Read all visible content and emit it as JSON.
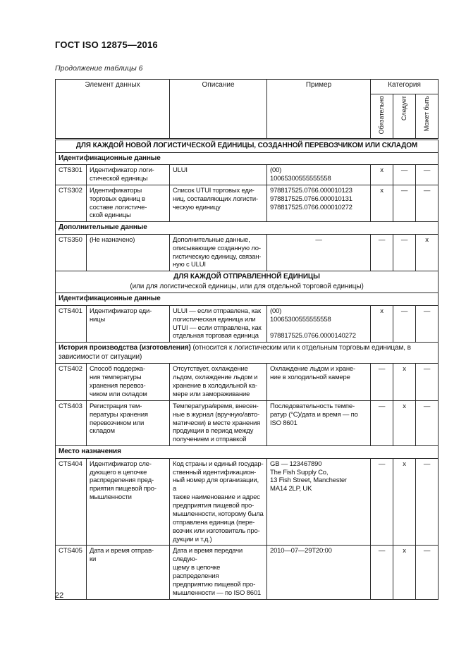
{
  "page": {
    "doc_title": "ГОСТ ISO 12875—2016",
    "table_caption": "Продолжение таблицы 6",
    "page_number": "22"
  },
  "table": {
    "headers": {
      "element": "Элемент данных",
      "description": "Описание",
      "example": "Пример",
      "category": "Категория",
      "category_cols": [
        "Обязательно",
        "Следует",
        "Может быть"
      ]
    },
    "rows": [
      {
        "type": "section",
        "title": "ДЛЯ КАЖДОЙ НОВОЙ ЛОГИСТИЧЕСКОЙ ЕДИНИЦЫ, СОЗДАННОЙ ПЕРЕВОЗЧИКОМ ИЛИ СКЛАДОМ",
        "subtitle": ""
      },
      {
        "type": "subsection",
        "title": "Идентификационные данные",
        "note": ""
      },
      {
        "type": "data",
        "code": "CTS301",
        "name": "Идентификатор логи-\nстической единицы",
        "desc": "ULUI",
        "example": "(00)\n10065300555555558",
        "example_align": "left",
        "cat": [
          "x",
          "—",
          "—"
        ]
      },
      {
        "type": "data",
        "code": "CTS302",
        "name": "Идентификаторы\nторговых единиц в\nсоставе логистиче-\nской единицы",
        "desc": "Список UTUI торговых еди-\nниц, составляющих логисти-\nческую единицу",
        "example": "978817525.0766.000010123\n978817525.0766.000010131\n978817525.0766.000010272",
        "example_align": "left",
        "cat": [
          "x",
          "—",
          "—"
        ]
      },
      {
        "type": "subsection",
        "title": "Дополнительные данные",
        "note": ""
      },
      {
        "type": "data",
        "code": "CTS350",
        "name": "(Не назначено)",
        "desc": "Дополнительные данные,\nописывающие созданную ло-\nгистическую единицу, связан-\nную с ULUI",
        "example": "—",
        "example_align": "center",
        "cat": [
          "—",
          "—",
          "x"
        ]
      },
      {
        "type": "section",
        "title": "ДЛЯ КАЖДОЙ ОТПРАВЛЕННОЙ ЕДИНИЦЫ",
        "subtitle": "(или для логистической единицы, или для отдельной торговой единицы)"
      },
      {
        "type": "subsection",
        "title": "Идентификационные данные",
        "note": ""
      },
      {
        "type": "data",
        "code": "CTS401",
        "name": "Идентификатор еди-\nницы",
        "desc": "ULUI — если отправлена, как\nлогистическая единица или\nUTUI — если отправлена, как\nотдельная торговая единица",
        "example": "(00)\n10065300555555558\n\n978817525.0766.0000140272",
        "example_align": "left",
        "cat": [
          "x",
          "—",
          "—"
        ]
      },
      {
        "type": "subsection",
        "title": "История производства (изготовления)",
        "note": "(относится к логистическим или к отдельным торговым единицам, в зависимости от ситуации)"
      },
      {
        "type": "data",
        "code": "CTS402",
        "name": "Способ поддержа-\nния температуры\nхранения перевоз-\nчиком или складом",
        "desc": "Отсутствует, охлаждение\nльдом, охлаждение льдом и\nхранение в холодильной ка-\nмере или замораживание",
        "example": "Охлаждение льдом и хране-\nние в холодильной камере",
        "example_align": "left",
        "cat": [
          "—",
          "x",
          "—"
        ]
      },
      {
        "type": "data",
        "code": "CTS403",
        "name": "Регистрация тем-\nпературы хранения\nперевозчиком или\nскладом",
        "desc": "Температура/время, внесен-\nные в журнал (вручную/авто-\nматически) в месте хранения\nпродукции в период между\nполучением и отправкой",
        "example": "Последовательность темпе-\nратур (°С)/дата и время — по\nISO 8601",
        "example_align": "left",
        "cat": [
          "—",
          "x",
          "—"
        ]
      },
      {
        "type": "subsection",
        "title": "Место назначения",
        "note": ""
      },
      {
        "type": "data",
        "code": "CTS404",
        "name": "Идентификатор сле-\nдующего в цепочке\nраспределения пред-\nприятия пищевой про-\nмышленности",
        "desc": "Код страны и единый государ-\nственный идентификацион-\nный номер для организации, а\nтакже наименование и адрес\nпредприятия пищевой про-\nмышленности, которому была\nотправлена единица (пере-\nвозчик или изготовитель про-\nдукции и т.д.)",
        "example": "GB — 123467890\nThe Fish Supply Co,\n13 Fish Street, Manchester\nMA14 2LP, UK",
        "example_align": "left",
        "cat": [
          "—",
          "x",
          "—"
        ]
      },
      {
        "type": "data",
        "code": "CTS405",
        "name": "Дата и время отправ-\nки",
        "desc": "Дата и время передачи следую-\nщему в цепочке распределения\nпредприятию пищевой про-\nмышленности  — по ISO 8601",
        "example": "2010—07—29T20:00",
        "example_align": "left",
        "cat": [
          "—",
          "x",
          "—"
        ]
      }
    ]
  }
}
